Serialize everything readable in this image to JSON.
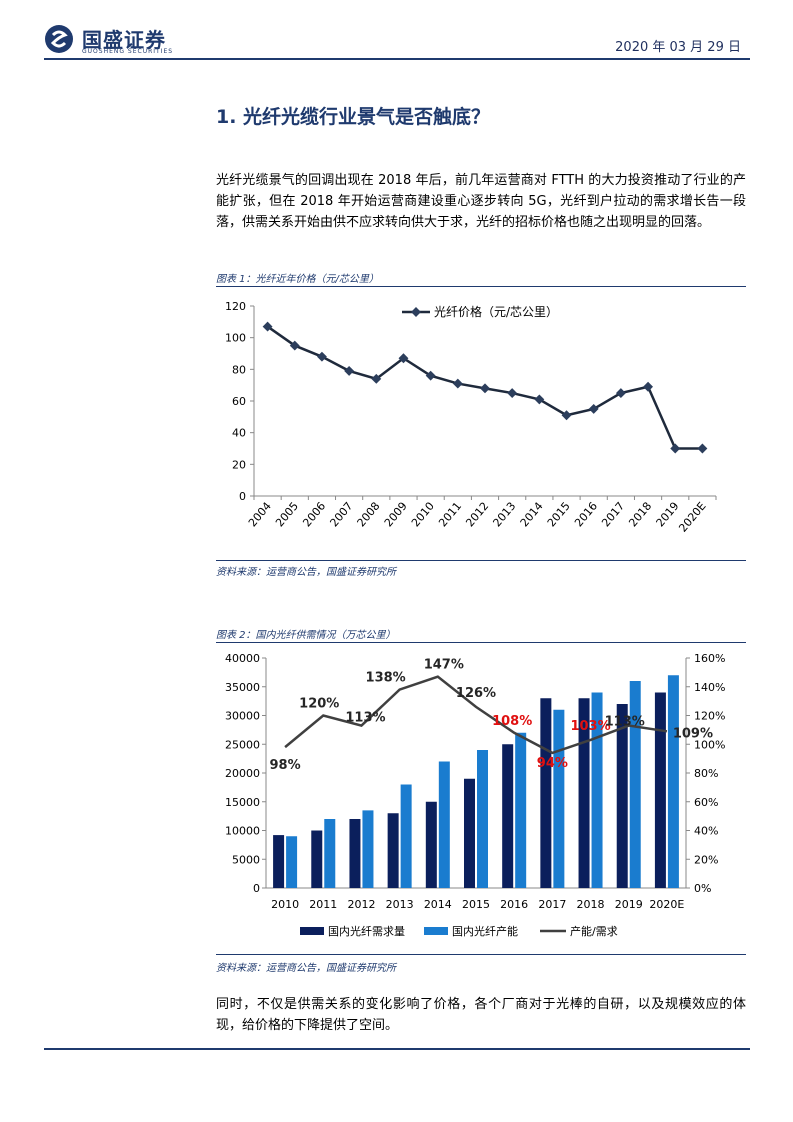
{
  "header": {
    "brand_cn": "国盛证券",
    "brand_en": "GUOSHENG SECURITIES",
    "date": "2020 年 03 月 29 日"
  },
  "section": {
    "heading": "1. 光纤光缆行业景气是否触底？"
  },
  "body": {
    "para1": "光纤光缆景气的回调出现在 2018 年后，前几年运营商对 FTTH 的大力投资推动了行业的产能扩张，但在 2018 年开始运营商建设重心逐步转向 5G，光纤到户拉动的需求增长告一段落，供需关系开始由供不应求转向供大于求，光纤的招标价格也随之出现明显的回落。",
    "para2": "同时，不仅是供需关系的变化影响了价格，各个厂商对于光棒的自研，以及规模效应的体现，给价格的下降提供了空间。"
  },
  "figure1": {
    "caption": "图表 1：光纤近年价格（元/芯公里）",
    "source": "资料来源：运营商公告，国盛证券研究所"
  },
  "figure2": {
    "caption": "图表 2：国内光纤供需情况（万芯公里）",
    "source": "资料来源：运营商公告，国盛证券研究所"
  },
  "chart_data": [
    {
      "type": "line",
      "categories": [
        "2004",
        "2005",
        "2006",
        "2007",
        "2008",
        "2009",
        "2010",
        "2011",
        "2012",
        "2013",
        "2014",
        "2015",
        "2016",
        "2017",
        "2018",
        "2019",
        "2020E"
      ],
      "series": [
        {
          "name": "光纤价格（元/芯公里）",
          "values": [
            107,
            95,
            88,
            79,
            74,
            87,
            76,
            71,
            68,
            65,
            61,
            51,
            55,
            65,
            69,
            30,
            30
          ],
          "color": "#1f2a3c"
        }
      ],
      "ylim": [
        0,
        120
      ],
      "yticks": [
        0,
        20,
        40,
        60,
        80,
        100,
        120
      ],
      "legend": "top-center",
      "grid": false
    },
    {
      "type": "bar",
      "categories": [
        "2010",
        "2011",
        "2012",
        "2013",
        "2014",
        "2015",
        "2016",
        "2017",
        "2018",
        "2019",
        "2020E"
      ],
      "series": [
        {
          "name": "国内光纤需求量",
          "values": [
            9200,
            10000,
            12000,
            13000,
            15000,
            19000,
            25000,
            33000,
            33000,
            32000,
            34000
          ],
          "color": "#0b1f5c",
          "axis": "left"
        },
        {
          "name": "国内光纤产能",
          "values": [
            9000,
            12000,
            13500,
            18000,
            22000,
            24000,
            27000,
            31000,
            34000,
            36000,
            37000
          ],
          "color": "#1a7ccf",
          "axis": "left"
        },
        {
          "name": "产能/需求",
          "type": "line",
          "values": [
            98,
            120,
            113,
            138,
            147,
            126,
            108,
            94,
            103,
            113,
            109
          ],
          "color": "#404040",
          "axis": "right"
        }
      ],
      "ratio_labels": [
        "98%",
        "120%",
        "113%",
        "138%",
        "147%",
        "126%",
        "108%",
        "94%",
        "103%",
        "113%",
        "109%"
      ],
      "ratio_label_colors": [
        "#262626",
        "#262626",
        "#262626",
        "#262626",
        "#262626",
        "#262626",
        "#e01010",
        "#e01010",
        "#e01010",
        "#262626",
        "#262626"
      ],
      "ylim_left": [
        0,
        40000
      ],
      "yticks_left": [
        0,
        5000,
        10000,
        15000,
        20000,
        25000,
        30000,
        35000,
        40000
      ],
      "ylim_right": [
        0,
        160
      ],
      "yticks_right": [
        "0%",
        "20%",
        "40%",
        "60%",
        "80%",
        "100%",
        "120%",
        "140%",
        "160%"
      ],
      "legend": "bottom",
      "grid": false
    }
  ]
}
